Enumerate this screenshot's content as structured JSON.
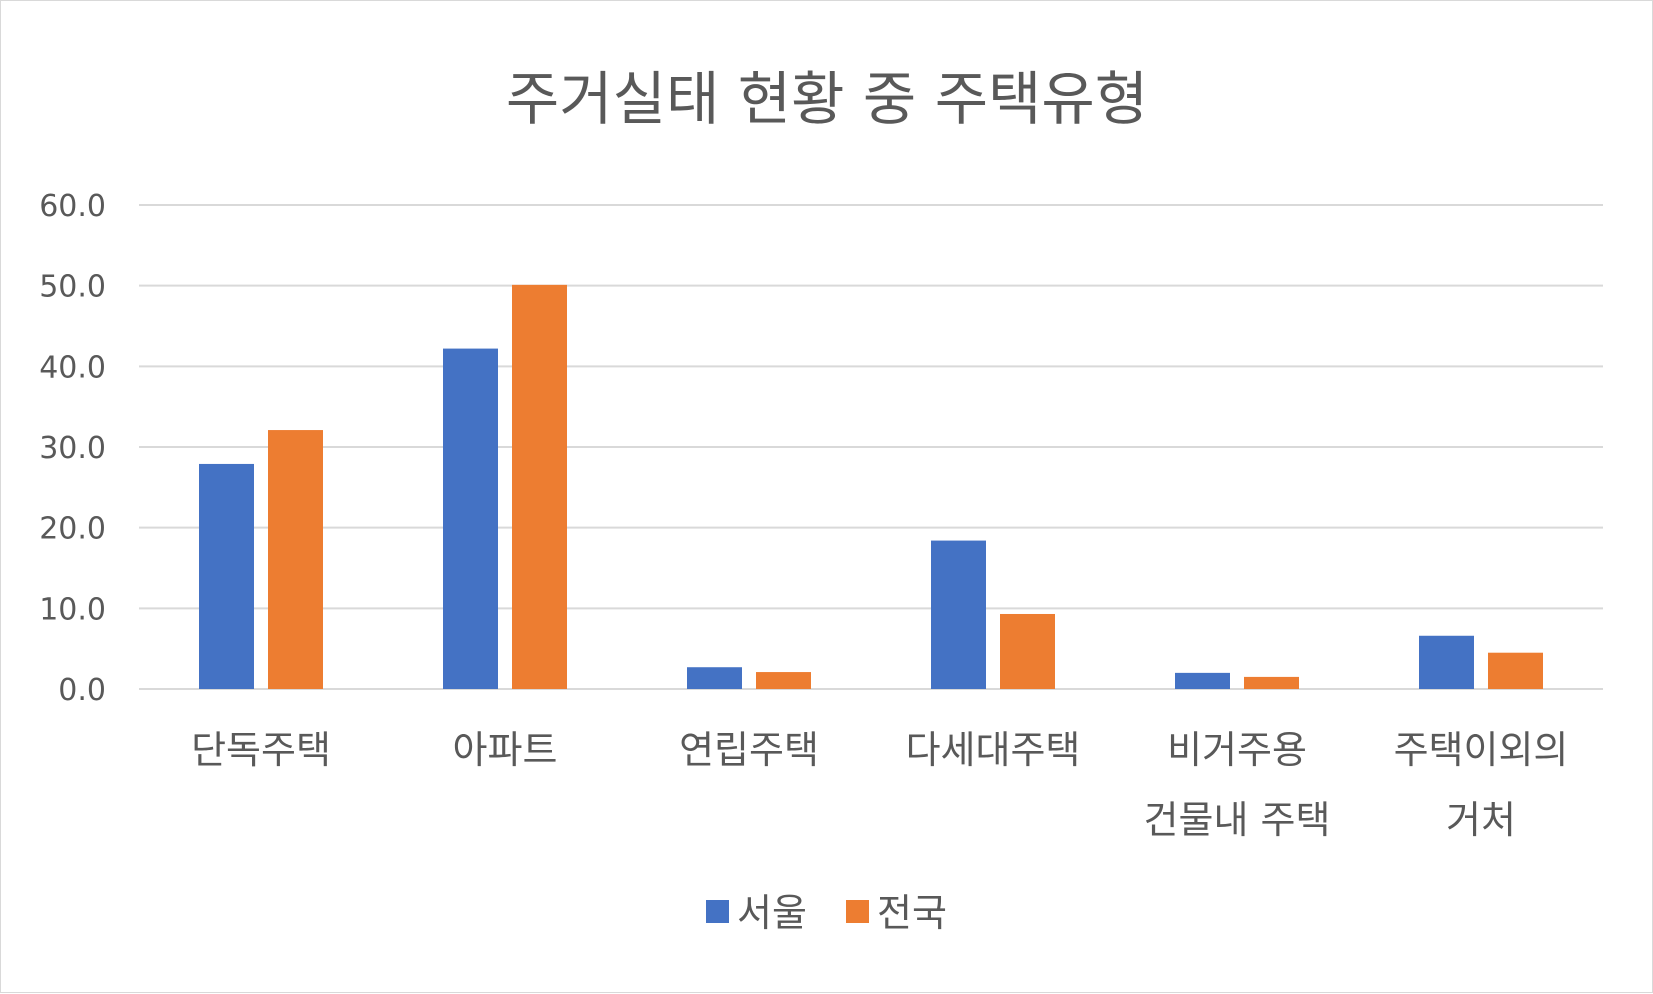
{
  "chart_data": {
    "type": "bar",
    "title": "주거실태 현황 중 주택유형",
    "categories": [
      [
        "단독주택"
      ],
      [
        "아파트"
      ],
      [
        "연립주택"
      ],
      [
        "다세대주택"
      ],
      [
        "비거주용",
        "건물내 주택"
      ],
      [
        "주택이외의",
        "거처"
      ]
    ],
    "series": [
      {
        "name": "서울",
        "color": "#4472c4",
        "values": [
          27.9,
          42.2,
          2.7,
          18.4,
          2.0,
          6.6
        ]
      },
      {
        "name": "전국",
        "color": "#ed7d31",
        "values": [
          32.1,
          50.1,
          2.1,
          9.3,
          1.5,
          4.5
        ]
      }
    ],
    "yticks": [
      "0.0",
      "10.0",
      "20.0",
      "30.0",
      "40.0",
      "50.0",
      "60.0"
    ],
    "ylim": [
      0,
      60
    ],
    "grid": true,
    "legend_position": "bottom",
    "gridline_color": "#d9d9d9"
  }
}
